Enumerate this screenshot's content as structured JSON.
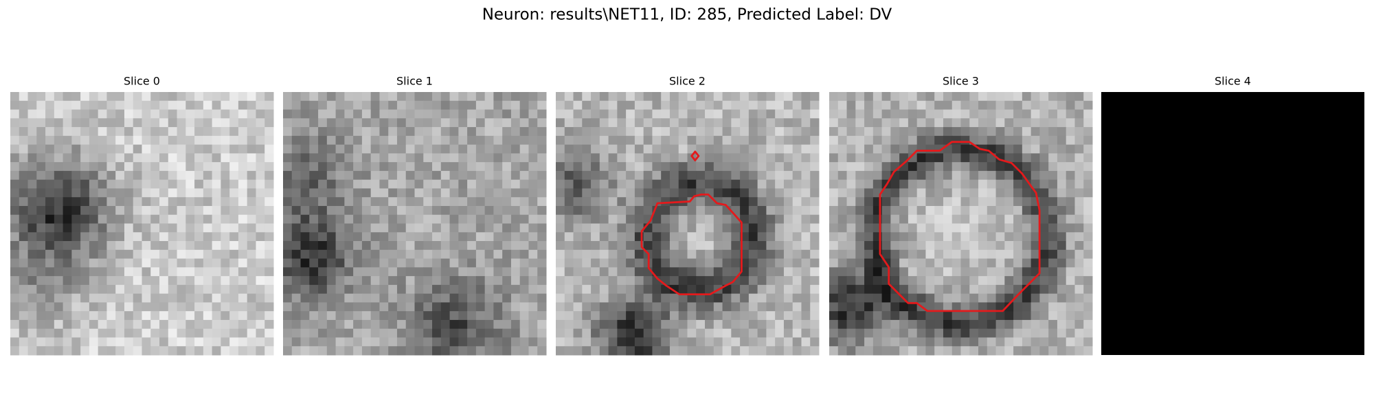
{
  "header": {
    "title": "Neuron: results\\NET11, ID: 285, Predicted Label: DV"
  },
  "panels": [
    {
      "title": "Slice 0"
    },
    {
      "title": "Slice 1"
    },
    {
      "title": "Slice 2"
    },
    {
      "title": "Slice 3"
    },
    {
      "title": "Slice 4"
    }
  ]
}
